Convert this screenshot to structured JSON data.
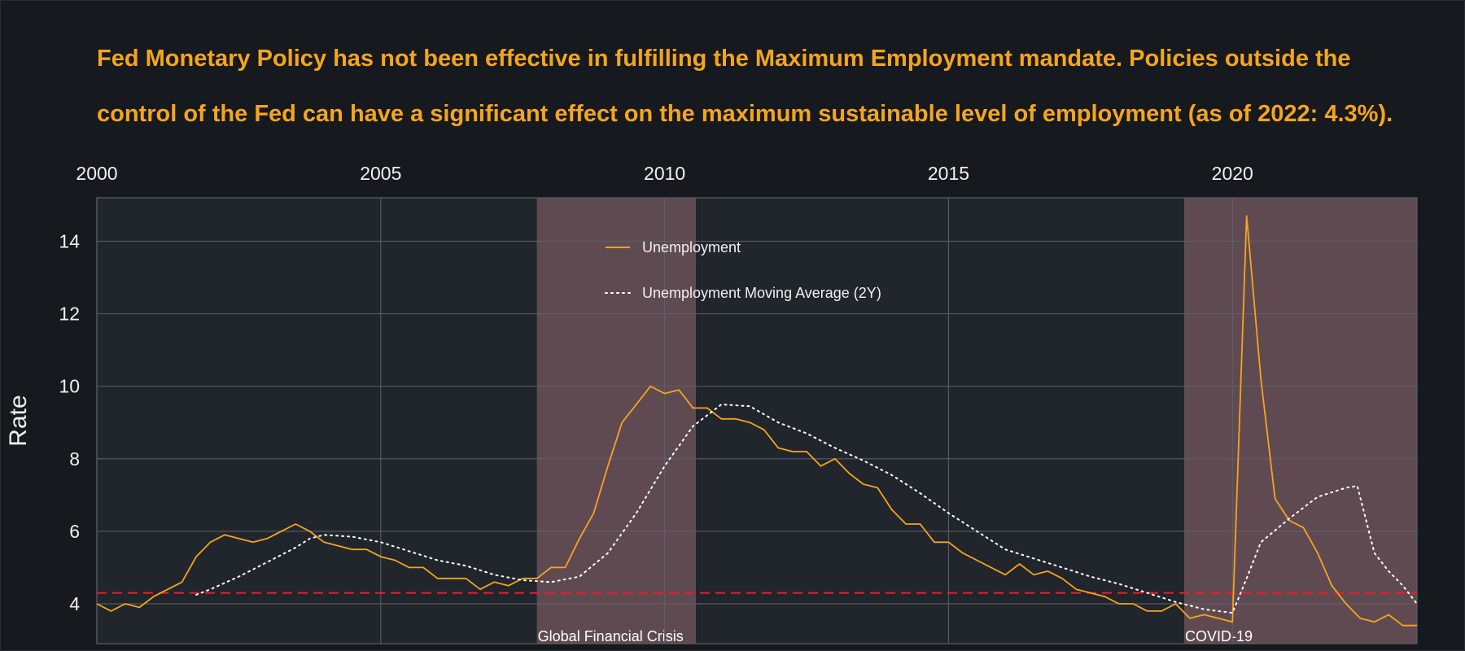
{
  "title_lines": [
    "Fed Monetary Policy has not been effective in fulfilling the Maximum Employment mandate. Policies outside the",
    "control of the Fed can have a significant effect on the maximum sustainable level of employment (as of 2022: 4.3%)."
  ],
  "colors": {
    "background": "#16191d",
    "plot_background": "#21252c",
    "grid": "#5d6168",
    "unemployment": "#f5a51d",
    "moving_average": "#ffffff",
    "reference_line": "#e3212b",
    "crisis_band": "#6e535a",
    "title": "#f5a51d"
  },
  "chart_data": {
    "type": "line",
    "title": "Fed Monetary Policy has not been effective in fulfilling the Maximum Employment mandate. Policies outside the control of the Fed can have a significant effect on the maximum sustainable level of employment (as of 2022: 4.3%).",
    "xlabel": "",
    "ylabel": "Rate",
    "xlim": [
      2000,
      2023.25
    ],
    "ylim": [
      2.9,
      15.2
    ],
    "x_ticks": [
      "2000",
      "2005",
      "2010",
      "2015",
      "2020"
    ],
    "x_tick_values": [
      2000,
      2005,
      2010,
      2015,
      2020
    ],
    "x_axis_position": "top",
    "y_ticks": [
      "4",
      "6",
      "8",
      "10",
      "12",
      "14"
    ],
    "y_tick_values": [
      4,
      6,
      8,
      10,
      12,
      14
    ],
    "grid": true,
    "legend": {
      "placement": "top-center",
      "entries": [
        "Unemployment",
        "Unemployment Moving Average (2Y)"
      ]
    },
    "reference_line": {
      "y": 4.3,
      "style": "dashed"
    },
    "shaded_regions": [
      {
        "label": "Global Financial Crisis",
        "x_start": 2007.75,
        "x_end": 2010.55
      },
      {
        "label": "COVID-19",
        "x_start": 2019.15,
        "x_end": 2023.25
      }
    ],
    "series": [
      {
        "name": "Unemployment",
        "style": "solid",
        "points": [
          [
            2000.0,
            4.0
          ],
          [
            2000.25,
            3.8
          ],
          [
            2000.5,
            4.0
          ],
          [
            2000.75,
            3.9
          ],
          [
            2001.0,
            4.2
          ],
          [
            2001.25,
            4.4
          ],
          [
            2001.5,
            4.6
          ],
          [
            2001.75,
            5.3
          ],
          [
            2002.0,
            5.7
          ],
          [
            2002.25,
            5.9
          ],
          [
            2002.5,
            5.8
          ],
          [
            2002.75,
            5.7
          ],
          [
            2003.0,
            5.8
          ],
          [
            2003.25,
            6.0
          ],
          [
            2003.5,
            6.2
          ],
          [
            2003.75,
            6.0
          ],
          [
            2004.0,
            5.7
          ],
          [
            2004.25,
            5.6
          ],
          [
            2004.5,
            5.5
          ],
          [
            2004.75,
            5.5
          ],
          [
            2005.0,
            5.3
          ],
          [
            2005.25,
            5.2
          ],
          [
            2005.5,
            5.0
          ],
          [
            2005.75,
            5.0
          ],
          [
            2006.0,
            4.7
          ],
          [
            2006.25,
            4.7
          ],
          [
            2006.5,
            4.7
          ],
          [
            2006.75,
            4.4
          ],
          [
            2007.0,
            4.6
          ],
          [
            2007.25,
            4.5
          ],
          [
            2007.5,
            4.7
          ],
          [
            2007.75,
            4.7
          ],
          [
            2008.0,
            5.0
          ],
          [
            2008.25,
            5.0
          ],
          [
            2008.5,
            5.8
          ],
          [
            2008.75,
            6.5
          ],
          [
            2009.0,
            7.8
          ],
          [
            2009.25,
            9.0
          ],
          [
            2009.5,
            9.5
          ],
          [
            2009.75,
            10.0
          ],
          [
            2010.0,
            9.8
          ],
          [
            2010.25,
            9.9
          ],
          [
            2010.5,
            9.4
          ],
          [
            2010.75,
            9.4
          ],
          [
            2011.0,
            9.1
          ],
          [
            2011.25,
            9.1
          ],
          [
            2011.5,
            9.0
          ],
          [
            2011.75,
            8.8
          ],
          [
            2012.0,
            8.3
          ],
          [
            2012.25,
            8.2
          ],
          [
            2012.5,
            8.2
          ],
          [
            2012.75,
            7.8
          ],
          [
            2013.0,
            8.0
          ],
          [
            2013.25,
            7.6
          ],
          [
            2013.5,
            7.3
          ],
          [
            2013.75,
            7.2
          ],
          [
            2014.0,
            6.6
          ],
          [
            2014.25,
            6.2
          ],
          [
            2014.5,
            6.2
          ],
          [
            2014.75,
            5.7
          ],
          [
            2015.0,
            5.7
          ],
          [
            2015.25,
            5.4
          ],
          [
            2015.5,
            5.2
          ],
          [
            2015.75,
            5.0
          ],
          [
            2016.0,
            4.8
          ],
          [
            2016.25,
            5.1
          ],
          [
            2016.5,
            4.8
          ],
          [
            2016.75,
            4.9
          ],
          [
            2017.0,
            4.7
          ],
          [
            2017.25,
            4.4
          ],
          [
            2017.5,
            4.3
          ],
          [
            2017.75,
            4.2
          ],
          [
            2018.0,
            4.0
          ],
          [
            2018.25,
            4.0
          ],
          [
            2018.5,
            3.8
          ],
          [
            2018.75,
            3.8
          ],
          [
            2019.0,
            4.0
          ],
          [
            2019.25,
            3.6
          ],
          [
            2019.5,
            3.7
          ],
          [
            2019.75,
            3.6
          ],
          [
            2020.0,
            3.5
          ],
          [
            2020.25,
            14.7
          ],
          [
            2020.5,
            10.2
          ],
          [
            2020.75,
            6.9
          ],
          [
            2021.0,
            6.3
          ],
          [
            2021.25,
            6.1
          ],
          [
            2021.5,
            5.4
          ],
          [
            2021.75,
            4.5
          ],
          [
            2022.0,
            4.0
          ],
          [
            2022.25,
            3.6
          ],
          [
            2022.5,
            3.5
          ],
          [
            2022.75,
            3.7
          ],
          [
            2023.0,
            3.4
          ],
          [
            2023.25,
            3.4
          ]
        ]
      },
      {
        "name": "Unemployment Moving Average (2Y)",
        "style": "dotted",
        "points": [
          [
            2001.75,
            4.25
          ],
          [
            2002.0,
            4.4
          ],
          [
            2002.5,
            4.75
          ],
          [
            2003.0,
            5.15
          ],
          [
            2003.5,
            5.55
          ],
          [
            2003.75,
            5.8
          ],
          [
            2004.0,
            5.9
          ],
          [
            2004.5,
            5.85
          ],
          [
            2005.0,
            5.7
          ],
          [
            2005.5,
            5.45
          ],
          [
            2006.0,
            5.2
          ],
          [
            2006.5,
            5.05
          ],
          [
            2007.0,
            4.8
          ],
          [
            2007.5,
            4.65
          ],
          [
            2008.0,
            4.6
          ],
          [
            2008.5,
            4.75
          ],
          [
            2009.0,
            5.4
          ],
          [
            2009.5,
            6.5
          ],
          [
            2010.0,
            7.8
          ],
          [
            2010.5,
            8.9
          ],
          [
            2011.0,
            9.5
          ],
          [
            2011.5,
            9.45
          ],
          [
            2012.0,
            9.0
          ],
          [
            2012.5,
            8.7
          ],
          [
            2013.0,
            8.3
          ],
          [
            2013.5,
            7.95
          ],
          [
            2014.0,
            7.55
          ],
          [
            2014.5,
            7.05
          ],
          [
            2015.0,
            6.5
          ],
          [
            2015.5,
            6.0
          ],
          [
            2016.0,
            5.5
          ],
          [
            2016.5,
            5.25
          ],
          [
            2017.0,
            5.0
          ],
          [
            2017.5,
            4.75
          ],
          [
            2018.0,
            4.55
          ],
          [
            2018.5,
            4.3
          ],
          [
            2019.0,
            4.05
          ],
          [
            2019.5,
            3.85
          ],
          [
            2020.0,
            3.75
          ],
          [
            2020.25,
            4.7
          ],
          [
            2020.5,
            5.7
          ],
          [
            2021.0,
            6.35
          ],
          [
            2021.5,
            6.95
          ],
          [
            2022.0,
            7.2
          ],
          [
            2022.2,
            7.25
          ],
          [
            2022.5,
            5.4
          ],
          [
            2022.75,
            4.9
          ],
          [
            2023.0,
            4.5
          ],
          [
            2023.25,
            4.0
          ]
        ]
      }
    ]
  }
}
